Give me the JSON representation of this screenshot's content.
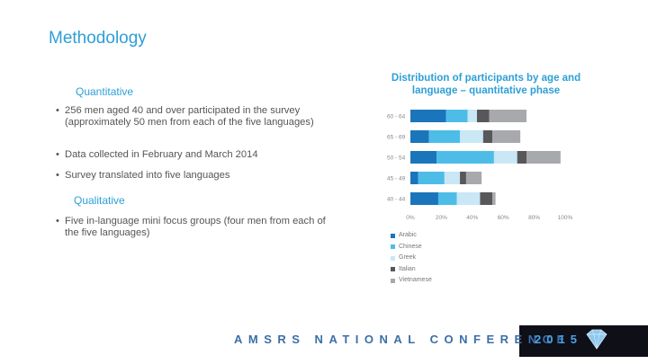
{
  "title": "Methodology",
  "quantitative": {
    "heading": "Quantitative",
    "bullets": [
      "256 men aged 40 and over participated in the survey (approximately 50 men from each of the five languages)",
      "Data collected in February and March 2014",
      "Survey translated into five languages"
    ]
  },
  "qualitative": {
    "heading": "Qualitative",
    "bullets": [
      "Five in-language mini focus groups (four men from each of the five languages)"
    ]
  },
  "chart_title": "Distribution of participants by age and language – quantitative phase",
  "chart_data": {
    "type": "bar",
    "orientation": "horizontal",
    "stacked": true,
    "categories": [
      "60 - 64",
      "65 - 69",
      "50 - 54",
      "45 - 49",
      "40 - 44"
    ],
    "series": [
      {
        "name": "Arabic",
        "color": "#1b75bb",
        "values": [
          23,
          12,
          17,
          5,
          18
        ]
      },
      {
        "name": "Chinese",
        "color": "#4dbde8",
        "values": [
          14,
          20,
          37,
          17,
          12
        ]
      },
      {
        "name": "Greek",
        "color": "#c9e7f5",
        "values": [
          6,
          15,
          15,
          10,
          15
        ]
      },
      {
        "name": "Italian",
        "color": "#58585a",
        "values": [
          8,
          6,
          6,
          4,
          8
        ]
      },
      {
        "name": "Vietnamese",
        "color": "#a7a9ac",
        "values": [
          24,
          18,
          22,
          10,
          2
        ]
      }
    ],
    "xticks": [
      "0%",
      "20%",
      "40%",
      "60%",
      "80%",
      "100%"
    ],
    "xlim": [
      0,
      100
    ],
    "legend_position": "bottom"
  },
  "footer": {
    "conference": "AMSRS NATIONAL CONFERENCE",
    "year": "2015"
  }
}
